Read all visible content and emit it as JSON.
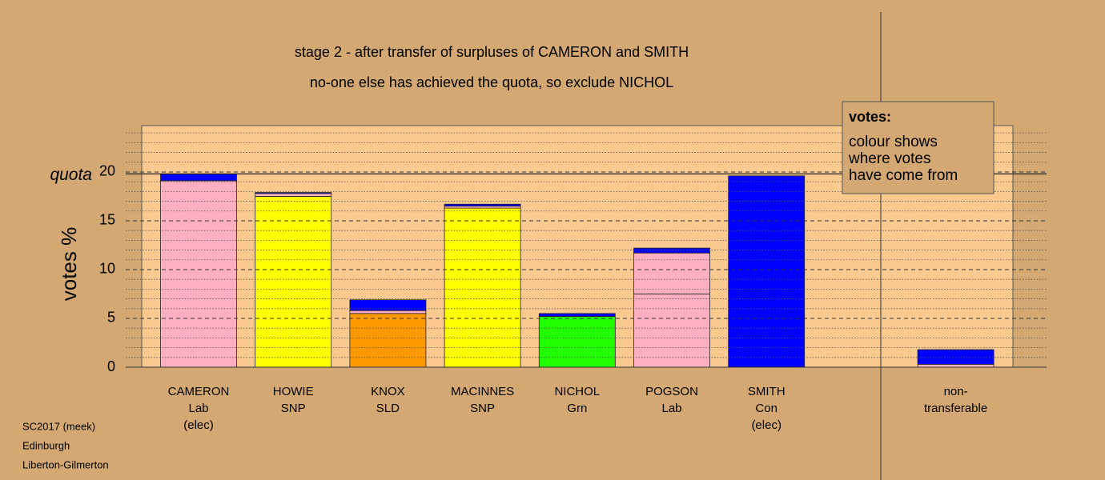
{
  "chart_data": {
    "type": "stacked_bar",
    "title": "stage 2 - after transfer of surpluses of CAMERON and SMITH",
    "subtitle": "no-one else has achieved the quota, so exclude NICHOL",
    "y_label": "votes %",
    "quota_label": "quota",
    "quota": 19.8,
    "categories": [
      [
        "CAMERON",
        "Lab",
        "(elec)"
      ],
      [
        "HOWIE",
        "SNP"
      ],
      [
        "KNOX",
        "SLD"
      ],
      [
        "MACINNES",
        "SNP"
      ],
      [
        "NICHOL",
        "Grn"
      ],
      [
        "POGSON",
        "Lab"
      ],
      [
        "SMITH",
        "Con",
        "(elec)"
      ],
      null,
      [
        "non-",
        "transferable"
      ]
    ],
    "stacks": [
      [
        {
          "value": 19.1,
          "color": "#ffb0c0"
        },
        {
          "value": 0.7,
          "color": "#0000ff"
        }
      ],
      [
        {
          "value": 17.5,
          "color": "#ffff00"
        },
        {
          "value": 0.3,
          "color": "#ffb0c0"
        },
        {
          "value": 0.1,
          "color": "#0000ff"
        }
      ],
      [
        {
          "value": 5.5,
          "color": "#ff9900"
        },
        {
          "value": 0.3,
          "color": "#ffb0c0"
        },
        {
          "value": 1.1,
          "color": "#0000ff"
        }
      ],
      [
        {
          "value": 16.3,
          "color": "#ffff00"
        },
        {
          "value": 0.2,
          "color": "#ffb0c0"
        },
        {
          "value": 0.2,
          "color": "#0000ff"
        }
      ],
      [
        {
          "value": 5.2,
          "color": "#22ff00"
        },
        {
          "value": 0.3,
          "color": "#0000ff"
        }
      ],
      [
        {
          "value": 7.5,
          "color": "#ffb0c0"
        },
        {
          "value": 4.2,
          "color": "#ffb0c0"
        },
        {
          "value": 0.5,
          "color": "#0000ff"
        }
      ],
      [
        {
          "value": 19.6,
          "color": "#0000ff"
        }
      ],
      null,
      [
        {
          "value": 0.3,
          "color": "#ffb0c0"
        },
        {
          "value": 1.5,
          "color": "#0000ff"
        }
      ]
    ],
    "ylim": [
      0,
      24.75
    ],
    "yticks": [
      0,
      5,
      10,
      15,
      20
    ],
    "minor_yticks": [
      1,
      2,
      3,
      4,
      6,
      7,
      8,
      9,
      11,
      12,
      13,
      14,
      16,
      17,
      18,
      19,
      21,
      22,
      23,
      24
    ],
    "grid": true,
    "legend": {
      "title": "votes:",
      "lines": [
        "colour shows",
        "where votes",
        "have come from"
      ]
    },
    "footer": [
      "SC2017 (meek)",
      "Edinburgh",
      "Liberton-Gilmerton"
    ]
  }
}
